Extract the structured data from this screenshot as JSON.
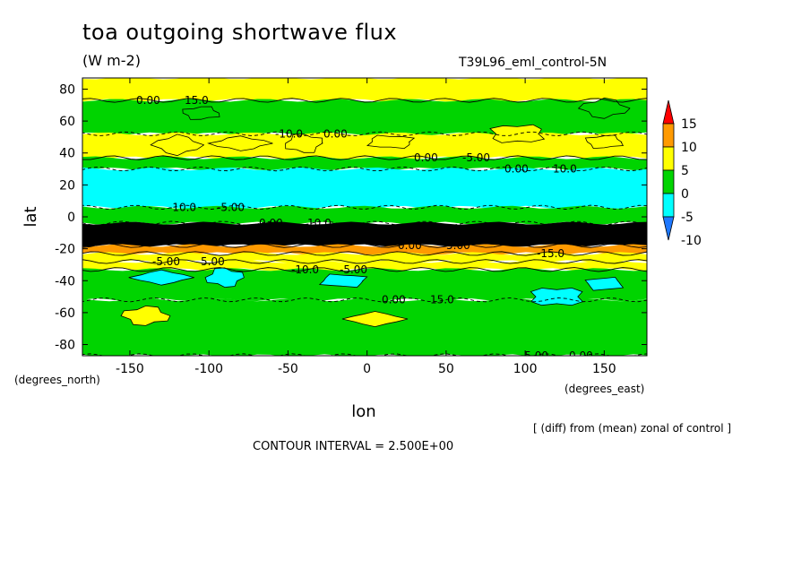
{
  "header": {
    "title": "toa outgoing shortwave flux",
    "units": "(W m-2)",
    "run": "T39L96_eml_control-5N"
  },
  "footer": {
    "x_units": "(degrees_east)",
    "y_units": "(degrees_north)",
    "note": "[ (diff) from (mean) zonal of control ]",
    "contour_interval": "CONTOUR INTERVAL = 2.500E+00"
  },
  "chart_data": {
    "type": "heatmap",
    "xlabel": "lon",
    "ylabel": "lat",
    "xlim": [
      -180,
      177
    ],
    "ylim": [
      -87,
      87
    ],
    "xticks": [
      -150,
      -100,
      -50,
      0,
      50,
      100,
      150
    ],
    "xtick_labels": [
      "-150",
      "-100",
      "-50",
      "0",
      "50",
      "100",
      "150"
    ],
    "yticks": [
      80,
      60,
      40,
      20,
      0,
      -20,
      -40,
      -60,
      -80
    ],
    "ytick_labels": [
      "80",
      "60",
      "40",
      "20",
      "0",
      "-20",
      "-40",
      "-60",
      "-80"
    ],
    "contour_interval": 2.5,
    "colorbar": {
      "labels": [
        "15",
        "10",
        "5",
        "0",
        "-5",
        "-10"
      ],
      "levels": [
        -10,
        -5,
        0,
        5,
        10,
        15
      ],
      "colors": [
        "#1e78ff",
        "#00ffff",
        "#00d400",
        "#ffff00",
        "#ff9a00",
        "#ff0000"
      ]
    },
    "zonal_bands": [
      {
        "lat_from": 87,
        "lat_to": 73,
        "value": 0
      },
      {
        "lat_from": 73,
        "lat_to": 52,
        "value": -2.5
      },
      {
        "lat_from": 52,
        "lat_to": 37,
        "value": 2.5
      },
      {
        "lat_from": 37,
        "lat_to": 30,
        "value": -2.5
      },
      {
        "lat_from": 30,
        "lat_to": 6,
        "value": -7.5
      },
      {
        "lat_from": 6,
        "lat_to": -4,
        "value": -2.5
      },
      {
        "lat_from": -4,
        "lat_to": -18,
        "value": 17.5
      },
      {
        "lat_from": -18,
        "lat_to": -23,
        "value": 7.5
      },
      {
        "lat_from": -23,
        "lat_to": -28,
        "value": 2.5
      },
      {
        "lat_from": -28,
        "lat_to": -33,
        "value": 2.5
      },
      {
        "lat_from": -33,
        "lat_to": -52,
        "value": -2.5
      },
      {
        "lat_from": -52,
        "lat_to": -87,
        "value": -2.5
      }
    ],
    "patches": [
      {
        "lon": -105,
        "lat": 65,
        "value": -2.5
      },
      {
        "lon": -120,
        "lat": 45,
        "value": 2.5
      },
      {
        "lon": -80,
        "lat": 46,
        "value": 2.5
      },
      {
        "lon": -40,
        "lat": 46,
        "value": 2.5
      },
      {
        "lon": 15,
        "lat": 47,
        "value": 2.5
      },
      {
        "lon": 95,
        "lat": 52,
        "value": 2.5
      },
      {
        "lon": 150,
        "lat": 47,
        "value": 2.5
      },
      {
        "lon": 150,
        "lat": 68,
        "value": -2.5
      },
      {
        "lon": -130,
        "lat": -38,
        "value": -7.5
      },
      {
        "lon": -90,
        "lat": -38,
        "value": -7.5
      },
      {
        "lon": -15,
        "lat": -40,
        "value": -7.5
      },
      {
        "lon": 120,
        "lat": -50,
        "value": -7.5
      },
      {
        "lon": 150,
        "lat": -42,
        "value": -7.5
      },
      {
        "lon": -140,
        "lat": -62,
        "value": 2.5
      },
      {
        "lon": 5,
        "lat": -64,
        "value": 2.5
      }
    ],
    "contour_labels": [
      "0.00",
      "0.00",
      "0.00",
      "0.00",
      "-5.00",
      "-10.0",
      "0.00",
      "-5.00",
      "-10.0",
      "-10.0",
      "0.00",
      "-15.0",
      "15.0",
      "10.0",
      "15.0",
      "10.0",
      "5.00",
      "0.00",
      "5.00",
      "0.00",
      "-5.00",
      "-5.00",
      "-5.00"
    ]
  }
}
